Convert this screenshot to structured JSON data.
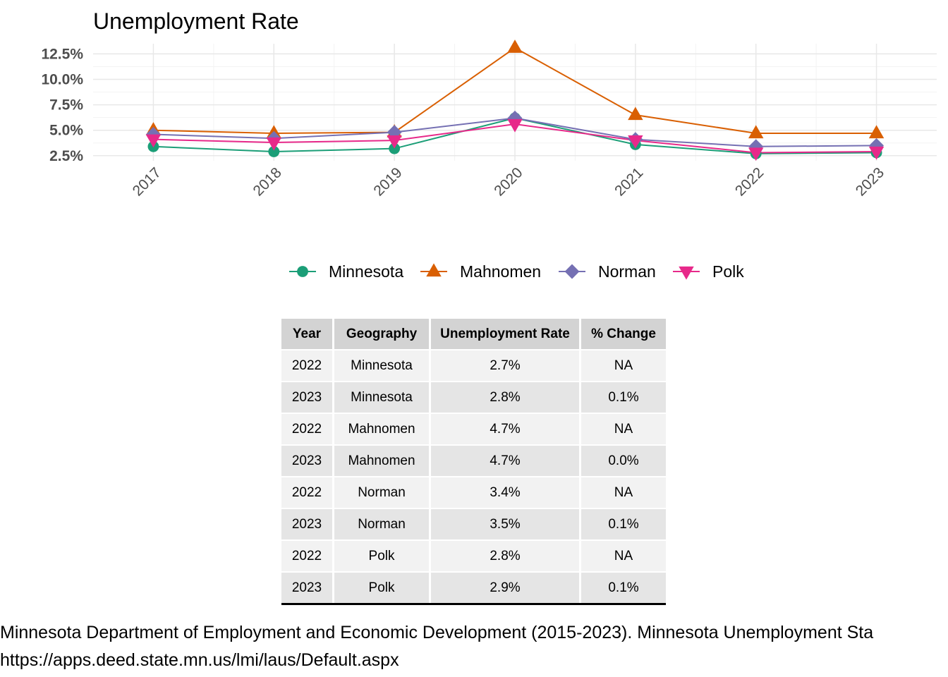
{
  "chart_data": {
    "type": "line",
    "title": "Unemployment Rate",
    "xlabel": "",
    "ylabel": "",
    "x": [
      "2017",
      "2018",
      "2019",
      "2020",
      "2021",
      "2022",
      "2023"
    ],
    "ylim": [
      2.0,
      13.5
    ],
    "yticks": [
      "2.5%",
      "5.0%",
      "7.5%",
      "10.0%",
      "12.5%"
    ],
    "ytick_values": [
      2.5,
      5.0,
      7.5,
      10.0,
      12.5
    ],
    "grid": true,
    "legend_position": "bottom",
    "series": [
      {
        "name": "Minnesota",
        "values": [
          3.4,
          2.9,
          3.2,
          6.2,
          3.6,
          2.7,
          2.8
        ],
        "color": "#1b9e77",
        "marker": "circle"
      },
      {
        "name": "Mahnomen",
        "values": [
          5.0,
          4.7,
          4.8,
          13.1,
          6.5,
          4.7,
          4.7
        ],
        "color": "#d95f02",
        "marker": "triangle-up"
      },
      {
        "name": "Norman",
        "values": [
          4.6,
          4.2,
          4.8,
          6.2,
          4.1,
          3.4,
          3.5
        ],
        "color": "#7570b3",
        "marker": "diamond"
      },
      {
        "name": "Polk",
        "values": [
          4.1,
          3.8,
          4.0,
          5.6,
          4.0,
          2.8,
          2.9
        ],
        "color": "#e7298a",
        "marker": "triangle-down"
      }
    ]
  },
  "table": {
    "headers": [
      "Year",
      "Geography",
      "Unemployment Rate",
      "% Change"
    ],
    "rows": [
      [
        "2022",
        "Minnesota",
        "2.7%",
        "NA"
      ],
      [
        "2023",
        "Minnesota",
        "2.8%",
        "0.1%"
      ],
      [
        "2022",
        "Mahnomen",
        "4.7%",
        "NA"
      ],
      [
        "2023",
        "Mahnomen",
        "4.7%",
        "0.0%"
      ],
      [
        "2022",
        "Norman",
        "3.4%",
        "NA"
      ],
      [
        "2023",
        "Norman",
        "3.5%",
        "0.1%"
      ],
      [
        "2022",
        "Polk",
        "2.8%",
        "NA"
      ],
      [
        "2023",
        "Polk",
        "2.9%",
        "0.1%"
      ]
    ]
  },
  "source": {
    "line1": "Minnesota Department of Employment and Economic Development (2015-2023). Minnesota Unemployment Sta",
    "line2": "https://apps.deed.state.mn.us/lmi/laus/Default.aspx"
  }
}
